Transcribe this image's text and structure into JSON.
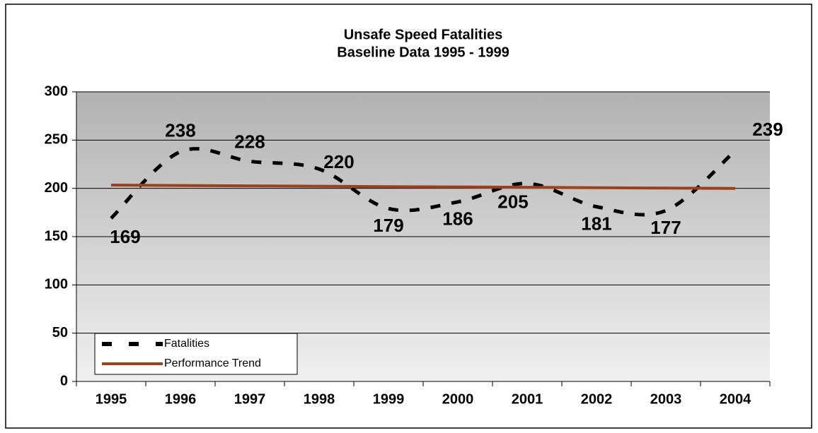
{
  "chart_data": {
    "type": "line",
    "title": "Unsafe Speed Fatalities",
    "subtitle": "Baseline Data 1995 - 1999",
    "categories": [
      "1995",
      "1996",
      "1997",
      "1998",
      "1999",
      "2000",
      "2001",
      "2002",
      "2003",
      "2004"
    ],
    "series": [
      {
        "name": "Fatalities",
        "color": "#000000",
        "style": "dashed",
        "smooth": true,
        "data_labels": true,
        "values": [
          169,
          238,
          228,
          220,
          179,
          186,
          205,
          181,
          177,
          239
        ]
      },
      {
        "name": "Performance Trend",
        "color": "#a0401a",
        "style": "solid",
        "smooth": false,
        "data_labels": false,
        "values": [
          203.4,
          203.0,
          202.6,
          202.2,
          201.8,
          201.5,
          201.1,
          200.7,
          200.3,
          199.9
        ]
      }
    ],
    "ylim": [
      0,
      300
    ],
    "yticks": [
      0,
      50,
      100,
      150,
      200,
      250,
      300
    ],
    "grid": true,
    "legend": "lower left"
  }
}
